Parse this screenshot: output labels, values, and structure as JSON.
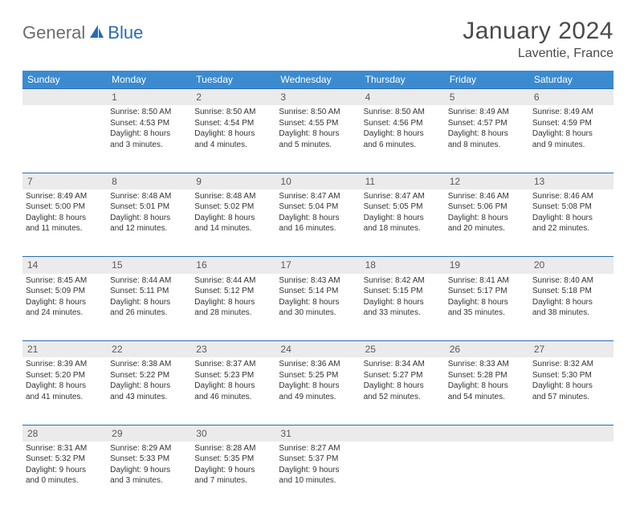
{
  "logo": {
    "part1": "General",
    "part2": "Blue"
  },
  "title": "January 2024",
  "location": "Laventie, France",
  "header_bg": "#3b8bd0",
  "daynum_bg": "#ebebeb",
  "rule_color": "#2a6cb3",
  "weekdays": [
    "Sunday",
    "Monday",
    "Tuesday",
    "Wednesday",
    "Thursday",
    "Friday",
    "Saturday"
  ],
  "weeks": [
    {
      "nums": [
        "",
        "1",
        "2",
        "3",
        "4",
        "5",
        "6"
      ],
      "cells": [
        null,
        {
          "sunrise": "Sunrise: 8:50 AM",
          "sunset": "Sunset: 4:53 PM",
          "day1": "Daylight: 8 hours",
          "day2": "and 3 minutes."
        },
        {
          "sunrise": "Sunrise: 8:50 AM",
          "sunset": "Sunset: 4:54 PM",
          "day1": "Daylight: 8 hours",
          "day2": "and 4 minutes."
        },
        {
          "sunrise": "Sunrise: 8:50 AM",
          "sunset": "Sunset: 4:55 PM",
          "day1": "Daylight: 8 hours",
          "day2": "and 5 minutes."
        },
        {
          "sunrise": "Sunrise: 8:50 AM",
          "sunset": "Sunset: 4:56 PM",
          "day1": "Daylight: 8 hours",
          "day2": "and 6 minutes."
        },
        {
          "sunrise": "Sunrise: 8:49 AM",
          "sunset": "Sunset: 4:57 PM",
          "day1": "Daylight: 8 hours",
          "day2": "and 8 minutes."
        },
        {
          "sunrise": "Sunrise: 8:49 AM",
          "sunset": "Sunset: 4:59 PM",
          "day1": "Daylight: 8 hours",
          "day2": "and 9 minutes."
        }
      ]
    },
    {
      "nums": [
        "7",
        "8",
        "9",
        "10",
        "11",
        "12",
        "13"
      ],
      "cells": [
        {
          "sunrise": "Sunrise: 8:49 AM",
          "sunset": "Sunset: 5:00 PM",
          "day1": "Daylight: 8 hours",
          "day2": "and 11 minutes."
        },
        {
          "sunrise": "Sunrise: 8:48 AM",
          "sunset": "Sunset: 5:01 PM",
          "day1": "Daylight: 8 hours",
          "day2": "and 12 minutes."
        },
        {
          "sunrise": "Sunrise: 8:48 AM",
          "sunset": "Sunset: 5:02 PM",
          "day1": "Daylight: 8 hours",
          "day2": "and 14 minutes."
        },
        {
          "sunrise": "Sunrise: 8:47 AM",
          "sunset": "Sunset: 5:04 PM",
          "day1": "Daylight: 8 hours",
          "day2": "and 16 minutes."
        },
        {
          "sunrise": "Sunrise: 8:47 AM",
          "sunset": "Sunset: 5:05 PM",
          "day1": "Daylight: 8 hours",
          "day2": "and 18 minutes."
        },
        {
          "sunrise": "Sunrise: 8:46 AM",
          "sunset": "Sunset: 5:06 PM",
          "day1": "Daylight: 8 hours",
          "day2": "and 20 minutes."
        },
        {
          "sunrise": "Sunrise: 8:46 AM",
          "sunset": "Sunset: 5:08 PM",
          "day1": "Daylight: 8 hours",
          "day2": "and 22 minutes."
        }
      ]
    },
    {
      "nums": [
        "14",
        "15",
        "16",
        "17",
        "18",
        "19",
        "20"
      ],
      "cells": [
        {
          "sunrise": "Sunrise: 8:45 AM",
          "sunset": "Sunset: 5:09 PM",
          "day1": "Daylight: 8 hours",
          "day2": "and 24 minutes."
        },
        {
          "sunrise": "Sunrise: 8:44 AM",
          "sunset": "Sunset: 5:11 PM",
          "day1": "Daylight: 8 hours",
          "day2": "and 26 minutes."
        },
        {
          "sunrise": "Sunrise: 8:44 AM",
          "sunset": "Sunset: 5:12 PM",
          "day1": "Daylight: 8 hours",
          "day2": "and 28 minutes."
        },
        {
          "sunrise": "Sunrise: 8:43 AM",
          "sunset": "Sunset: 5:14 PM",
          "day1": "Daylight: 8 hours",
          "day2": "and 30 minutes."
        },
        {
          "sunrise": "Sunrise: 8:42 AM",
          "sunset": "Sunset: 5:15 PM",
          "day1": "Daylight: 8 hours",
          "day2": "and 33 minutes."
        },
        {
          "sunrise": "Sunrise: 8:41 AM",
          "sunset": "Sunset: 5:17 PM",
          "day1": "Daylight: 8 hours",
          "day2": "and 35 minutes."
        },
        {
          "sunrise": "Sunrise: 8:40 AM",
          "sunset": "Sunset: 5:18 PM",
          "day1": "Daylight: 8 hours",
          "day2": "and 38 minutes."
        }
      ]
    },
    {
      "nums": [
        "21",
        "22",
        "23",
        "24",
        "25",
        "26",
        "27"
      ],
      "cells": [
        {
          "sunrise": "Sunrise: 8:39 AM",
          "sunset": "Sunset: 5:20 PM",
          "day1": "Daylight: 8 hours",
          "day2": "and 41 minutes."
        },
        {
          "sunrise": "Sunrise: 8:38 AM",
          "sunset": "Sunset: 5:22 PM",
          "day1": "Daylight: 8 hours",
          "day2": "and 43 minutes."
        },
        {
          "sunrise": "Sunrise: 8:37 AM",
          "sunset": "Sunset: 5:23 PM",
          "day1": "Daylight: 8 hours",
          "day2": "and 46 minutes."
        },
        {
          "sunrise": "Sunrise: 8:36 AM",
          "sunset": "Sunset: 5:25 PM",
          "day1": "Daylight: 8 hours",
          "day2": "and 49 minutes."
        },
        {
          "sunrise": "Sunrise: 8:34 AM",
          "sunset": "Sunset: 5:27 PM",
          "day1": "Daylight: 8 hours",
          "day2": "and 52 minutes."
        },
        {
          "sunrise": "Sunrise: 8:33 AM",
          "sunset": "Sunset: 5:28 PM",
          "day1": "Daylight: 8 hours",
          "day2": "and 54 minutes."
        },
        {
          "sunrise": "Sunrise: 8:32 AM",
          "sunset": "Sunset: 5:30 PM",
          "day1": "Daylight: 8 hours",
          "day2": "and 57 minutes."
        }
      ]
    },
    {
      "nums": [
        "28",
        "29",
        "30",
        "31",
        "",
        "",
        ""
      ],
      "cells": [
        {
          "sunrise": "Sunrise: 8:31 AM",
          "sunset": "Sunset: 5:32 PM",
          "day1": "Daylight: 9 hours",
          "day2": "and 0 minutes."
        },
        {
          "sunrise": "Sunrise: 8:29 AM",
          "sunset": "Sunset: 5:33 PM",
          "day1": "Daylight: 9 hours",
          "day2": "and 3 minutes."
        },
        {
          "sunrise": "Sunrise: 8:28 AM",
          "sunset": "Sunset: 5:35 PM",
          "day1": "Daylight: 9 hours",
          "day2": "and 7 minutes."
        },
        {
          "sunrise": "Sunrise: 8:27 AM",
          "sunset": "Sunset: 5:37 PM",
          "day1": "Daylight: 9 hours",
          "day2": "and 10 minutes."
        },
        null,
        null,
        null
      ]
    }
  ]
}
